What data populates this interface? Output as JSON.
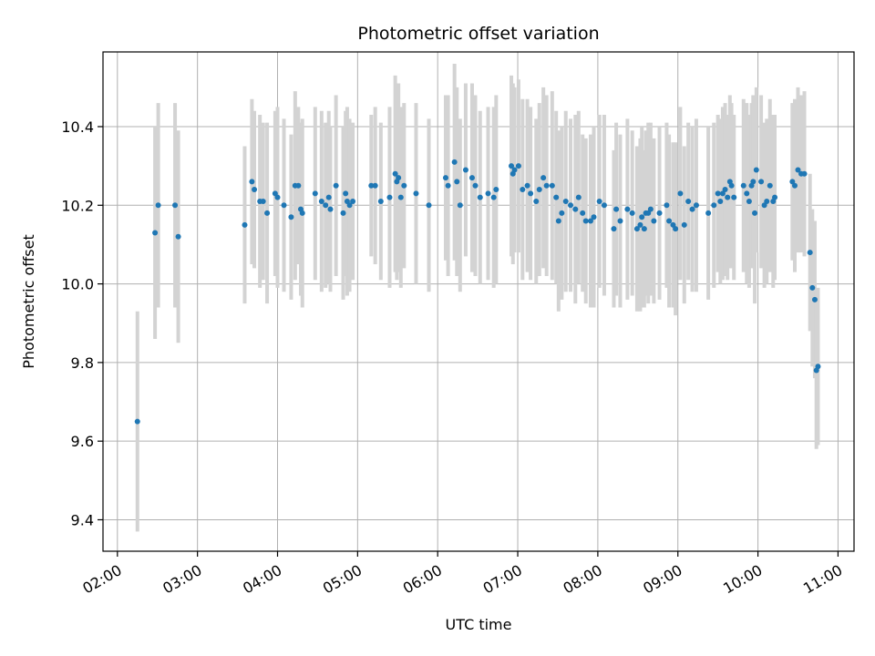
{
  "chart_data": {
    "type": "scatter",
    "title": "Photometric offset variation",
    "xlabel": "UTC time",
    "ylabel": "Photometric offset",
    "x_unit": "hours UTC",
    "xlim": [
      1.82,
      11.2
    ],
    "ylim": [
      9.32,
      10.59
    ],
    "x_ticks": [
      2,
      3,
      4,
      5,
      6,
      7,
      8,
      9,
      10,
      11
    ],
    "x_tick_labels": [
      "02:00",
      "03:00",
      "04:00",
      "05:00",
      "06:00",
      "07:00",
      "08:00",
      "09:00",
      "10:00",
      "11:00"
    ],
    "y_ticks": [
      9.4,
      9.6,
      9.8,
      10.0,
      10.2,
      10.4
    ],
    "y_tick_labels": [
      "9.4",
      "9.6",
      "9.8",
      "10.0",
      "10.2",
      "10.4"
    ],
    "grid": true,
    "legend": "none",
    "colors": {
      "point": "#1f77b4",
      "errorbar": "#d3d3d3",
      "grid": "#b0b0b0"
    },
    "series": [
      {
        "x": [
          2.25,
          2.47,
          2.51,
          2.72,
          2.76,
          3.59,
          3.68,
          3.71,
          3.78,
          3.82,
          3.87,
          3.97,
          4.0,
          4.08,
          4.17,
          4.22,
          4.26,
          4.29,
          4.31,
          4.47,
          4.55,
          4.6,
          4.64,
          4.66,
          4.73,
          4.82,
          4.85,
          4.87,
          4.9,
          4.94,
          5.17,
          5.22,
          5.29,
          5.4,
          5.47,
          5.49,
          5.51,
          5.54,
          5.58,
          5.73,
          5.89,
          6.1,
          6.13,
          6.21,
          6.24,
          6.28,
          6.35,
          6.43,
          6.47,
          6.53,
          6.63,
          6.7,
          6.73,
          6.92,
          6.94,
          6.96,
          7.01,
          7.06,
          7.12,
          7.16,
          7.23,
          7.27,
          7.32,
          7.36,
          7.43,
          7.48,
          7.51,
          7.55,
          7.6,
          7.66,
          7.72,
          7.76,
          7.81,
          7.85,
          7.91,
          7.95,
          8.02,
          8.08,
          8.2,
          8.23,
          8.28,
          8.37,
          8.43,
          8.49,
          8.53,
          8.55,
          8.58,
          8.6,
          8.63,
          8.66,
          8.7,
          8.77,
          8.86,
          8.89,
          8.94,
          8.97,
          9.03,
          9.08,
          9.13,
          9.18,
          9.23,
          9.38,
          9.45,
          9.5,
          9.53,
          9.56,
          9.59,
          9.62,
          9.65,
          9.67,
          9.7,
          9.82,
          9.86,
          9.89,
          9.92,
          9.94,
          9.96,
          9.98,
          10.04,
          10.08,
          10.11,
          10.15,
          10.19,
          10.21,
          10.43,
          10.46,
          10.5,
          10.54,
          10.58,
          10.65,
          10.68,
          10.71,
          10.73,
          10.75
        ],
        "y": [
          9.65,
          10.13,
          10.2,
          10.2,
          10.12,
          10.15,
          10.26,
          10.24,
          10.21,
          10.21,
          10.18,
          10.23,
          10.22,
          10.2,
          10.17,
          10.25,
          10.25,
          10.19,
          10.18,
          10.23,
          10.21,
          10.2,
          10.22,
          10.19,
          10.25,
          10.18,
          10.23,
          10.21,
          10.2,
          10.21,
          10.25,
          10.25,
          10.21,
          10.22,
          10.28,
          10.26,
          10.27,
          10.22,
          10.25,
          10.23,
          10.2,
          10.27,
          10.25,
          10.31,
          10.26,
          10.2,
          10.29,
          10.27,
          10.25,
          10.22,
          10.23,
          10.22,
          10.24,
          10.3,
          10.28,
          10.29,
          10.3,
          10.24,
          10.25,
          10.23,
          10.21,
          10.24,
          10.27,
          10.25,
          10.25,
          10.22,
          10.16,
          10.18,
          10.21,
          10.2,
          10.19,
          10.22,
          10.18,
          10.16,
          10.16,
          10.17,
          10.21,
          10.2,
          10.14,
          10.19,
          10.16,
          10.19,
          10.18,
          10.14,
          10.15,
          10.17,
          10.14,
          10.18,
          10.18,
          10.19,
          10.16,
          10.18,
          10.2,
          10.16,
          10.15,
          10.14,
          10.23,
          10.15,
          10.21,
          10.19,
          10.2,
          10.18,
          10.2,
          10.23,
          10.21,
          10.23,
          10.24,
          10.22,
          10.26,
          10.25,
          10.22,
          10.25,
          10.23,
          10.21,
          10.25,
          10.26,
          10.18,
          10.29,
          10.26,
          10.2,
          10.21,
          10.25,
          10.21,
          10.22,
          10.26,
          10.25,
          10.29,
          10.28,
          10.28,
          10.08,
          9.99,
          9.96,
          9.78,
          9.79
        ],
        "yerr": [
          0.28,
          0.27,
          0.26,
          0.26,
          0.27,
          0.2,
          0.21,
          0.2,
          0.22,
          0.2,
          0.23,
          0.21,
          0.23,
          0.22,
          0.21,
          0.24,
          0.2,
          0.22,
          0.24,
          0.22,
          0.23,
          0.21,
          0.22,
          0.21,
          0.23,
          0.22,
          0.21,
          0.24,
          0.22,
          0.2,
          0.18,
          0.2,
          0.2,
          0.23,
          0.25,
          0.25,
          0.24,
          0.23,
          0.21,
          0.23,
          0.22,
          0.21,
          0.23,
          0.25,
          0.24,
          0.22,
          0.22,
          0.24,
          0.23,
          0.22,
          0.22,
          0.23,
          0.24,
          0.23,
          0.23,
          0.21,
          0.22,
          0.23,
          0.22,
          0.22,
          0.21,
          0.22,
          0.23,
          0.23,
          0.24,
          0.22,
          0.23,
          0.22,
          0.23,
          0.22,
          0.24,
          0.22,
          0.2,
          0.21,
          0.22,
          0.23,
          0.22,
          0.23,
          0.2,
          0.22,
          0.22,
          0.23,
          0.21,
          0.21,
          0.22,
          0.23,
          0.2,
          0.21,
          0.23,
          0.22,
          0.21,
          0.22,
          0.21,
          0.22,
          0.21,
          0.22,
          0.22,
          0.2,
          0.2,
          0.21,
          0.22,
          0.22,
          0.21,
          0.2,
          0.21,
          0.22,
          0.22,
          0.21,
          0.22,
          0.21,
          0.21,
          0.22,
          0.23,
          0.22,
          0.21,
          0.22,
          0.23,
          0.21,
          0.22,
          0.21,
          0.21,
          0.22,
          0.22,
          0.21,
          0.2,
          0.22,
          0.21,
          0.2,
          0.21,
          0.2,
          0.2,
          0.2,
          0.2,
          0.2
        ]
      }
    ]
  }
}
